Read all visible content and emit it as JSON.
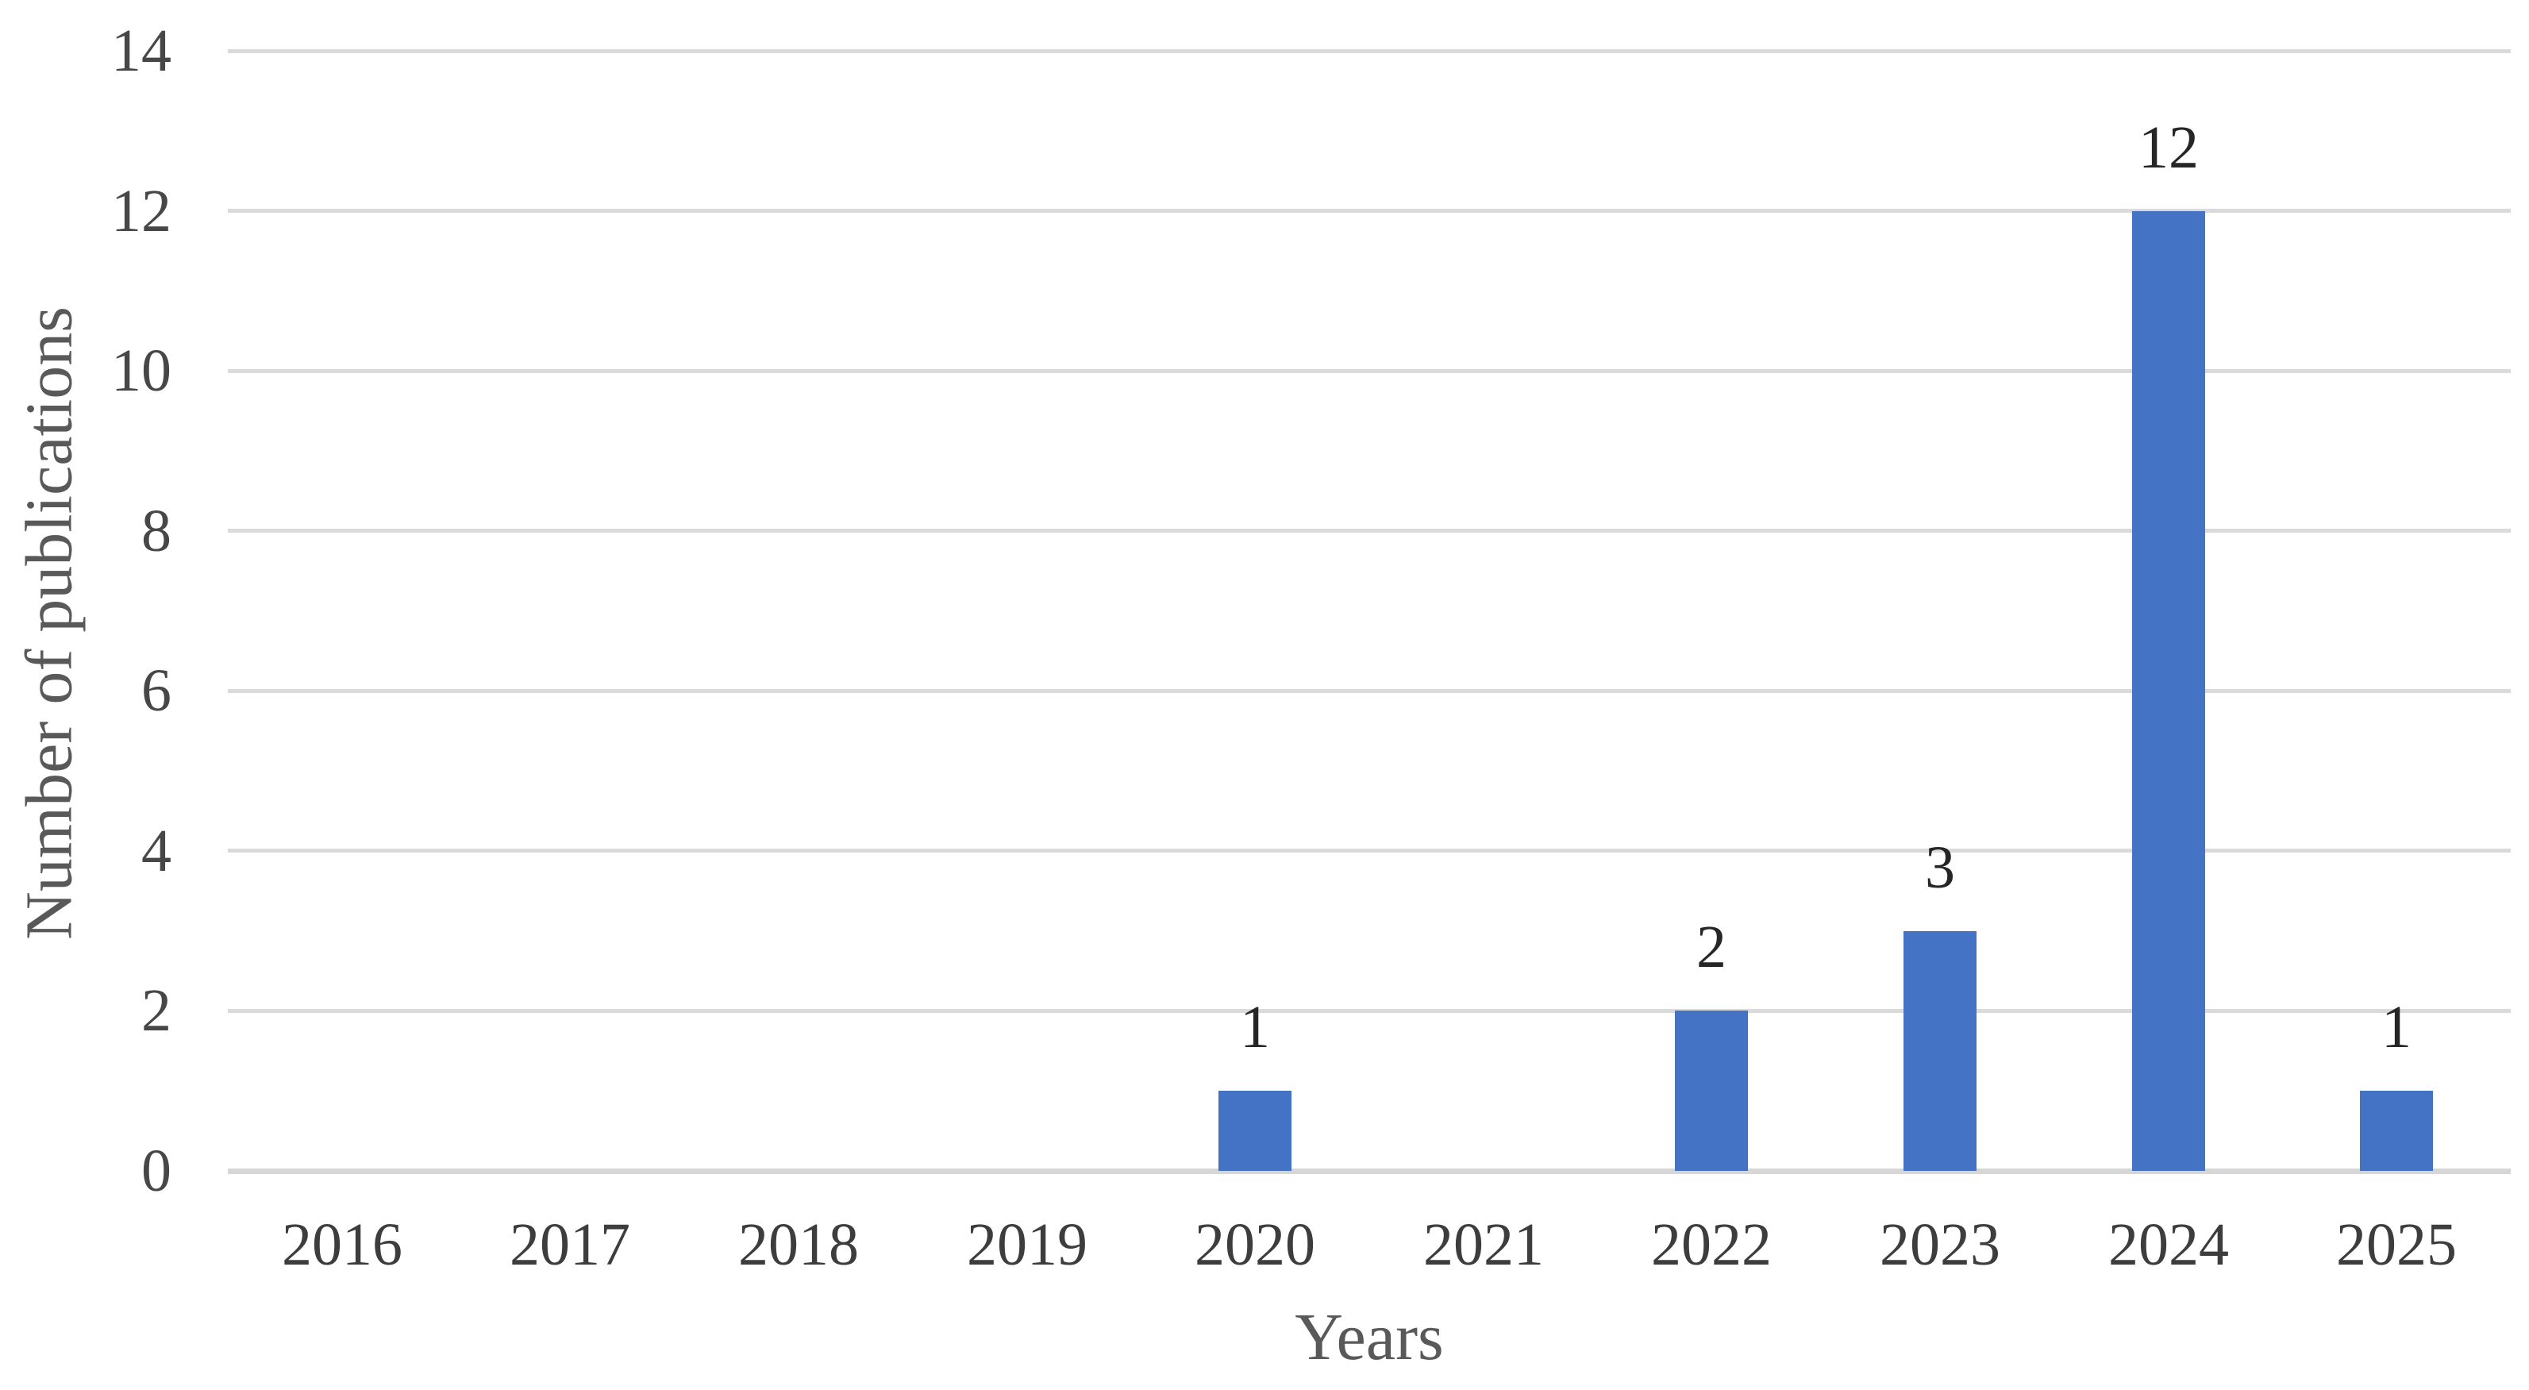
{
  "chart_data": {
    "type": "bar",
    "title": "",
    "categories": [
      "2016",
      "2017",
      "2018",
      "2019",
      "2020",
      "2021",
      "2022",
      "2023",
      "2024",
      "2025"
    ],
    "values": [
      0,
      0,
      0,
      0,
      1,
      0,
      2,
      3,
      12,
      1
    ],
    "xlabel": "Years",
    "ylabel": "Number of publications",
    "ylim": [
      0,
      14
    ],
    "yticks": [
      0,
      2,
      4,
      6,
      8,
      10,
      12,
      14
    ],
    "grid": "horizontal-only",
    "legend": "none",
    "data_labels_shown_for_nonzero_bars": true
  },
  "colors": {
    "bar": "#4472C4",
    "gridline": "#DADADA",
    "axis_line": "#D6D6D6",
    "tick_text": "#474747",
    "category_text": "#3d3d3d",
    "data_label_text": "#262626",
    "title_text": "#595959",
    "background": "#FFFFFF"
  }
}
